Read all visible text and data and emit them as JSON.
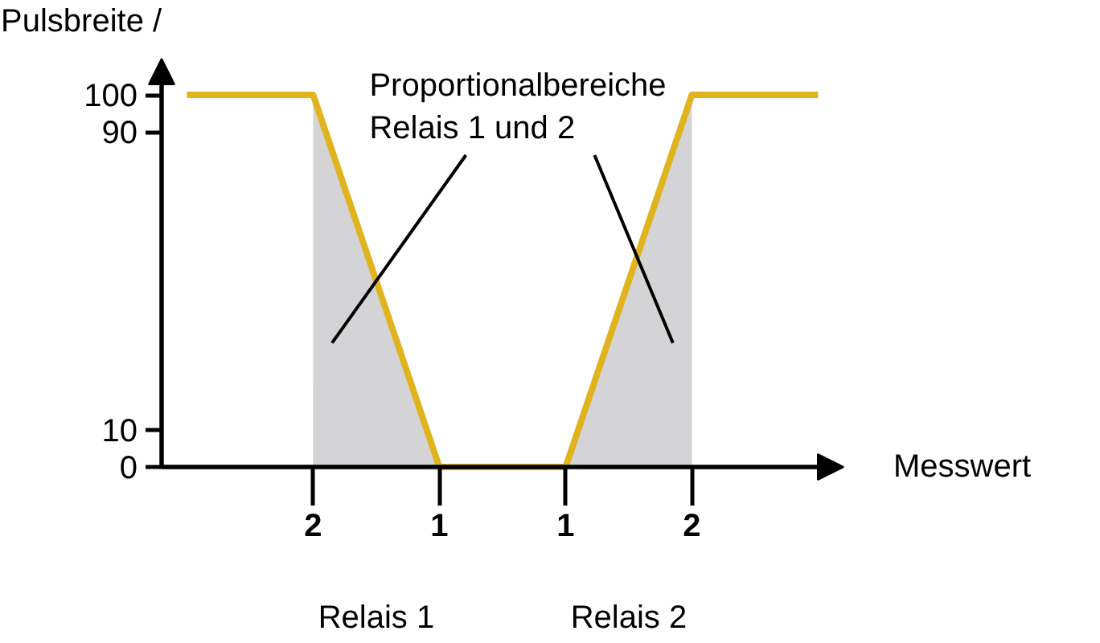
{
  "chart_data": {
    "type": "line",
    "ylabel": "Pulsbreite /",
    "xlabel": "Messwert",
    "ylim": [
      0,
      108
    ],
    "categories": [
      null,
      "2",
      "1",
      "1",
      "2",
      null
    ],
    "yticks": [
      0,
      10,
      90,
      100
    ],
    "series": [
      {
        "type": "area",
        "color": "#d4d4d6",
        "values": [
          null,
          100,
          0,
          null,
          null,
          null
        ]
      },
      {
        "type": "area",
        "color": "#d4d4d6",
        "values": [
          null,
          null,
          null,
          0,
          100,
          null
        ]
      },
      {
        "color": "#e0b41e",
        "values": [
          100,
          100,
          0,
          0,
          100,
          100
        ]
      }
    ],
    "annotations": [
      "Proportionalbereiche\nRelais 1 und 2",
      "Relais 1",
      "Relais 2"
    ],
    "grid": false
  }
}
